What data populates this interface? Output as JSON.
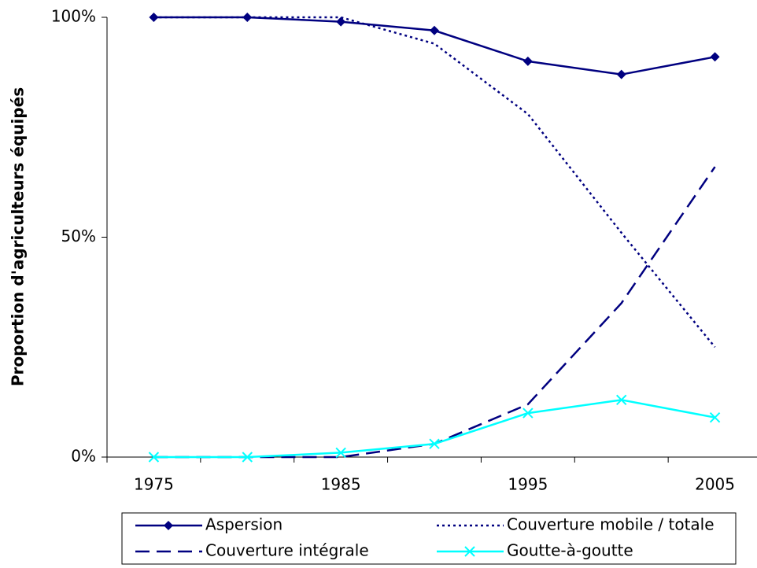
{
  "chart_data": {
    "type": "line",
    "y_label": "Proportion d'agriculteurs équipés",
    "categories": [
      "1975",
      null,
      "1985",
      null,
      "1995",
      null,
      "2005"
    ],
    "ylim": [
      0,
      100
    ],
    "yticks": [
      {
        "value": 0,
        "label": "0%"
      },
      {
        "value": 50,
        "label": "50%"
      },
      {
        "value": 100,
        "label": "100%"
      }
    ],
    "series": [
      {
        "name": "Aspersion",
        "color": "#000080",
        "dash": "solid",
        "marker": "diamond",
        "values": [
          100,
          100,
          99,
          97,
          90,
          87,
          91
        ]
      },
      {
        "name": "Couverture mobile / totale",
        "color": "#000080",
        "dash": "dotted",
        "marker": "none",
        "values": [
          100,
          100,
          100,
          94,
          78,
          51,
          25
        ]
      },
      {
        "name": "Couverture intégrale",
        "color": "#000080",
        "dash": "dashed",
        "marker": "none",
        "values": [
          0,
          0,
          0,
          3,
          12,
          35,
          66
        ]
      },
      {
        "name": "Goutte-à-goutte",
        "color": "#00ffff",
        "dash": "solid",
        "marker": "x",
        "values": [
          0,
          0,
          1,
          3,
          10,
          13,
          9
        ]
      }
    ]
  }
}
